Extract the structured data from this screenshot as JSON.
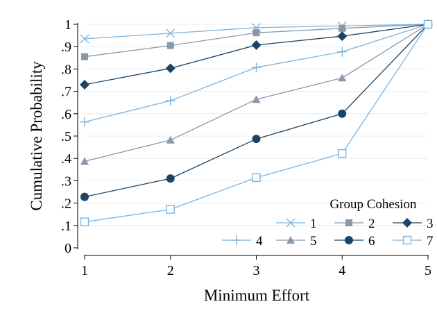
{
  "chart_data": {
    "type": "line",
    "title": "",
    "xlabel": "Minimum Effort",
    "ylabel": "Cumulative Probability",
    "xlim": [
      1,
      5
    ],
    "ylim": [
      0,
      1
    ],
    "x": [
      1,
      2,
      3,
      4,
      5
    ],
    "x_tick_labels": [
      "1",
      "2",
      "3",
      "4",
      "5"
    ],
    "y_ticks": [
      0,
      0.1,
      0.2,
      0.3,
      0.4,
      0.5,
      0.6,
      0.7,
      0.8,
      0.9,
      1
    ],
    "y_tick_labels": [
      "0",
      ".1",
      ".2",
      ".3",
      ".4",
      ".5",
      ".6",
      ".7",
      ".8",
      ".9",
      "1"
    ],
    "grid": "horizontal",
    "legend": {
      "title": "Group Cohesion",
      "placement": "bottom-right"
    },
    "series": [
      {
        "name": "1",
        "marker": "x",
        "color": "#7ab4e0",
        "values": [
          0.935,
          0.96,
          0.985,
          0.993,
          1.0
        ]
      },
      {
        "name": "2",
        "marker": "square",
        "color": "#8a98a8",
        "values": [
          0.855,
          0.905,
          0.962,
          0.982,
          1.0
        ]
      },
      {
        "name": "3",
        "marker": "diamond",
        "color": "#1b4466",
        "values": [
          0.73,
          0.803,
          0.907,
          0.947,
          1.0
        ]
      },
      {
        "name": "4",
        "marker": "plus",
        "color": "#7ab4e0",
        "values": [
          0.563,
          0.658,
          0.807,
          0.877,
          1.0
        ]
      },
      {
        "name": "5",
        "marker": "triangle",
        "color": "#8a98a8",
        "values": [
          0.387,
          0.482,
          0.664,
          0.76,
          1.0
        ]
      },
      {
        "name": "6",
        "marker": "circle",
        "color": "#1b4466",
        "values": [
          0.228,
          0.31,
          0.487,
          0.6,
          1.0
        ]
      },
      {
        "name": "7",
        "marker": "square-open",
        "color": "#7ab4e0",
        "values": [
          0.116,
          0.172,
          0.314,
          0.422,
          1.0
        ]
      }
    ]
  }
}
